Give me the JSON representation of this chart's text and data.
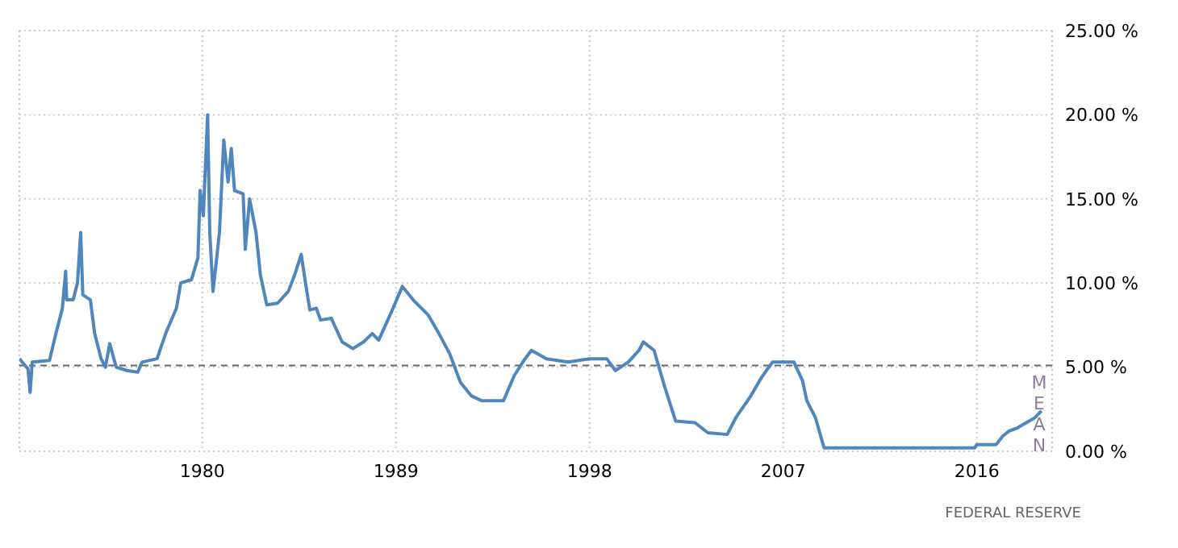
{
  "chart_data": {
    "type": "line",
    "x": [
      1971.5,
      1971.7,
      1971.9,
      1972.0,
      1972.1,
      1972.9,
      1973.2,
      1973.5,
      1973.65,
      1973.7,
      1974.0,
      1974.2,
      1974.35,
      1974.45,
      1974.8,
      1975.0,
      1975.3,
      1975.5,
      1975.7,
      1976.0,
      1976.5,
      1977.0,
      1977.2,
      1977.9,
      1978.3,
      1978.8,
      1979.0,
      1979.5,
      1979.8,
      1979.9,
      1980.05,
      1980.25,
      1980.35,
      1980.5,
      1980.8,
      1981.0,
      1981.2,
      1981.35,
      1981.5,
      1981.9,
      1982.0,
      1982.2,
      1982.5,
      1982.7,
      1983.0,
      1983.5,
      1984.0,
      1984.3,
      1984.6,
      1984.8,
      1985.0,
      1985.3,
      1985.5,
      1986.0,
      1986.5,
      1987.0,
      1987.5,
      1987.9,
      1988.2,
      1988.8,
      1989.3,
      1989.8,
      1990.5,
      1991.0,
      1991.5,
      1992.0,
      1992.5,
      1993.0,
      1994.0,
      1994.5,
      1995.0,
      1995.3,
      1996.0,
      1997.0,
      1998.0,
      1998.8,
      1999.2,
      1999.8,
      2000.3,
      2000.5,
      2001.0,
      2001.5,
      2002.0,
      2002.9,
      2003.5,
      2004.4,
      2004.8,
      2005.5,
      2006.0,
      2006.5,
      2007.5,
      2007.9,
      2008.1,
      2008.5,
      2008.9,
      2015.9,
      2016.0,
      2016.9,
      2017.2,
      2017.5,
      2017.9,
      2018.3,
      2018.7,
      2019.0
    ],
    "series": [
      {
        "color": "#4f86bd",
        "values": [
          5.5,
          5.2,
          4.9,
          3.5,
          5.3,
          5.4,
          7.0,
          8.5,
          10.7,
          9.0,
          9.0,
          10.0,
          13.0,
          9.3,
          9.0,
          7.0,
          5.5,
          5.0,
          6.4,
          5.0,
          4.8,
          4.7,
          5.3,
          5.5,
          7.0,
          8.5,
          10.0,
          10.2,
          11.5,
          15.5,
          14.0,
          20.0,
          13.0,
          9.5,
          13.0,
          18.5,
          16.0,
          18.0,
          15.5,
          15.3,
          12.0,
          15.0,
          13.0,
          10.5,
          8.7,
          8.8,
          9.5,
          10.5,
          11.7,
          10.0,
          8.4,
          8.5,
          7.8,
          7.9,
          6.5,
          6.1,
          6.5,
          7.0,
          6.6,
          8.3,
          9.8,
          9.0,
          8.1,
          7.0,
          5.8,
          4.1,
          3.3,
          3.0,
          3.0,
          4.5,
          5.5,
          6.0,
          5.5,
          5.3,
          5.5,
          5.5,
          4.8,
          5.3,
          6.0,
          6.5,
          6.0,
          3.8,
          1.8,
          1.7,
          1.1,
          1.0,
          2.0,
          3.3,
          4.4,
          5.3,
          5.3,
          4.2,
          3.0,
          2.0,
          0.2,
          0.2,
          0.4,
          0.4,
          0.9,
          1.2,
          1.4,
          1.7,
          2.0,
          2.4
        ]
      }
    ],
    "xlim": [
      1971.5,
      2019.5
    ],
    "xticks": [
      1980,
      1989,
      1998,
      2007,
      2016
    ],
    "ylim": [
      0,
      25
    ],
    "yticks": [
      {
        "value": 0,
        "label": "0.00 %"
      },
      {
        "value": 5,
        "label": "5.00 %"
      },
      {
        "value": 10,
        "label": "10.00 %"
      },
      {
        "value": 15,
        "label": "15.00 %"
      },
      {
        "value": 20,
        "label": "20.00 %"
      },
      {
        "value": 25,
        "label": "25.00 %"
      }
    ],
    "ref_lines": [
      {
        "axis": "y",
        "value": 5.1,
        "label": "MEAN",
        "color": "#666666",
        "line_style": "dashed"
      }
    ],
    "grid": true,
    "line_style": "solid",
    "marker": "none",
    "annotations": [
      "FEDERAL RESERVE"
    ]
  }
}
